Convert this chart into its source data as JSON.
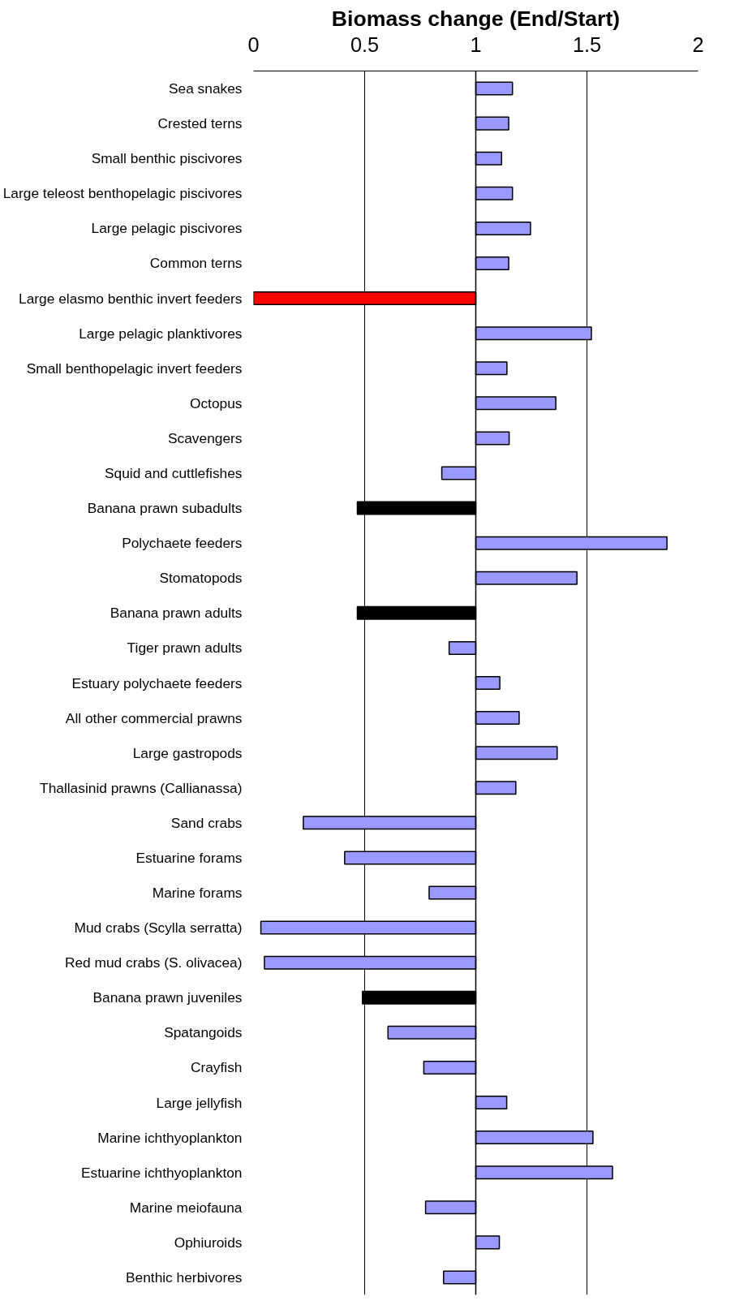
{
  "chart_data": {
    "type": "bar",
    "orientation": "horizontal",
    "title": "Biomass change (End/Start)",
    "categories": [
      "Sea snakes",
      "Crested terns",
      "Small benthic piscivores",
      "Large teleost benthopelagic piscivores",
      "Large pelagic piscivores",
      "Common terns",
      "Large elasmo benthic invert feeders",
      "Large pelagic planktivores",
      "Small benthopelagic invert feeders",
      "Octopus",
      "Scavengers",
      "Squid and cuttlefishes",
      "Banana prawn subadults",
      "Polychaete feeders",
      "Stomatopods",
      "Banana prawn adults",
      "Tiger prawn adults",
      "Estuary polychaete feeders",
      "All other commercial prawns",
      "Large gastropods",
      "Thallasinid prawns (Callianassa)",
      "Sand crabs",
      "Estuarine forams",
      "Marine forams",
      "Mud crabs (Scylla serratta)",
      "Red mud crabs (S. olivacea)",
      "Banana prawn juveniles",
      "Spatangoids",
      "Crayfish",
      "Large jellyfish",
      "Marine ichthyoplankton",
      "Estuarine ichthyoplankton",
      "Marine meiofauna",
      "Ophiuroids",
      "Benthic herbivores"
    ],
    "base": [
      1,
      1,
      1,
      1,
      1,
      1,
      1,
      1,
      1,
      1,
      1,
      1,
      1,
      1,
      1,
      1,
      1,
      1,
      1,
      1,
      1,
      1,
      1,
      1,
      1,
      1,
      1,
      1,
      1,
      1,
      1,
      1,
      1,
      1,
      1
    ],
    "values": [
      0.165,
      0.148,
      0.116,
      0.165,
      0.246,
      0.148,
      -1.0,
      0.52,
      0.14,
      0.36,
      0.15,
      -0.153,
      -0.533,
      0.86,
      0.455,
      -0.533,
      -0.12,
      0.108,
      0.195,
      0.366,
      0.18,
      -0.776,
      -0.59,
      -0.21,
      -0.967,
      -0.951,
      -0.51,
      -0.395,
      -0.234,
      0.139,
      0.527,
      0.615,
      -0.226,
      0.106,
      -0.145
    ],
    "colors": [
      "#9999ff",
      "#9999ff",
      "#9999ff",
      "#9999ff",
      "#9999ff",
      "#9999ff",
      "#ff0000",
      "#9999ff",
      "#9999ff",
      "#9999ff",
      "#9999ff",
      "#9999ff",
      "#000000",
      "#9999ff",
      "#9999ff",
      "#000000",
      "#9999ff",
      "#9999ff",
      "#9999ff",
      "#9999ff",
      "#9999ff",
      "#9999ff",
      "#9999ff",
      "#9999ff",
      "#9999ff",
      "#9999ff",
      "#000000",
      "#9999ff",
      "#9999ff",
      "#9999ff",
      "#9999ff",
      "#9999ff",
      "#9999ff",
      "#9999ff",
      "#9999ff"
    ],
    "xlim": [
      0,
      2
    ],
    "xticks": [
      0,
      0.5,
      1,
      1.5,
      2
    ],
    "grid": "x",
    "ref_lines": [
      {
        "axis": "x",
        "value": 1
      }
    ]
  }
}
